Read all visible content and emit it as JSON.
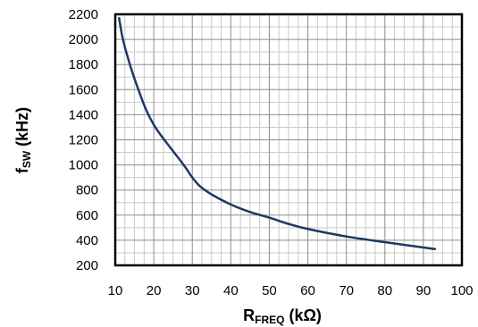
{
  "chart_data": {
    "type": "line",
    "xlabel": {
      "main": "R",
      "sub": "FREQ",
      "unit": " (kΩ)"
    },
    "ylabel": {
      "main": "f",
      "sub": "SW",
      "unit": " (kHz)"
    },
    "xlim": [
      10,
      100
    ],
    "ylim": [
      200,
      2200
    ],
    "x_ticks": [
      10,
      20,
      30,
      40,
      50,
      60,
      70,
      80,
      90,
      100
    ],
    "y_ticks": [
      200,
      400,
      600,
      800,
      1000,
      1200,
      1400,
      1600,
      1800,
      2000,
      2200
    ],
    "x_minor_step": 2.5,
    "y_minor_step": 100,
    "grid": true,
    "line_color": "#1f3864",
    "series": [
      {
        "x": [
          11,
          12,
          14,
          16,
          18,
          20,
          22,
          25,
          28,
          30,
          32,
          35,
          40,
          45,
          50,
          55,
          60,
          70,
          80,
          93
        ],
        "y": [
          2170,
          2000,
          1780,
          1600,
          1440,
          1320,
          1230,
          1110,
          990,
          900,
          830,
          765,
          685,
          625,
          580,
          530,
          490,
          430,
          385,
          330
        ]
      }
    ]
  }
}
